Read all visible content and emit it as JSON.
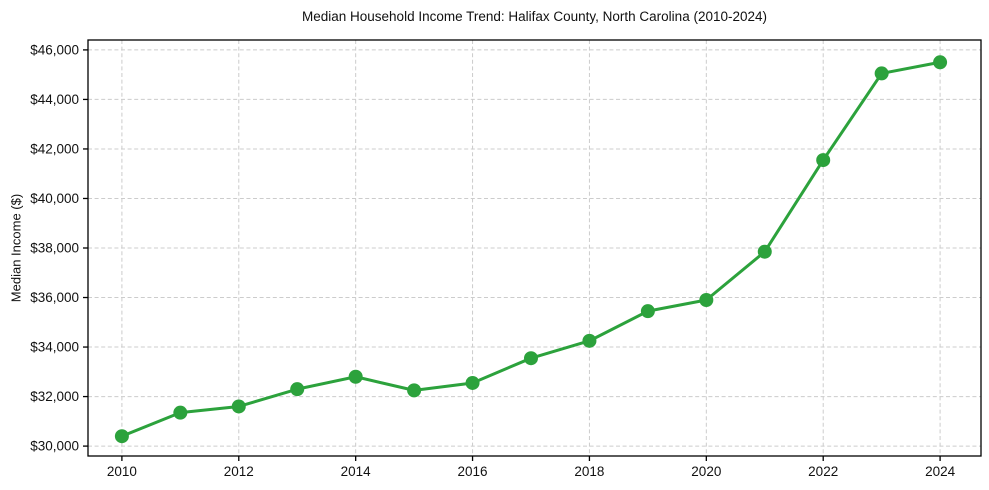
{
  "figure": {
    "background": "#ffffff",
    "text_color": "#111111",
    "spine_color": "#000000",
    "grid_color": "#cccccc"
  },
  "chart_data": {
    "type": "line",
    "title": "Median Household Income Trend: Halifax County, North Carolina (2010-2024)",
    "xlabel": "",
    "ylabel": "Median Income ($)",
    "x": [
      2010,
      2011,
      2012,
      2013,
      2014,
      2015,
      2016,
      2017,
      2018,
      2019,
      2020,
      2021,
      2022,
      2023,
      2024
    ],
    "values": [
      30400,
      31350,
      31600,
      32300,
      32800,
      32250,
      32550,
      33550,
      34250,
      35450,
      35900,
      37850,
      41550,
      45050,
      45500
    ],
    "line_color": "#2ca23c",
    "marker": "circle",
    "marker_size": 7,
    "line_width": 3,
    "x_ticks": [
      2010,
      2012,
      2014,
      2016,
      2018,
      2020,
      2022,
      2024
    ],
    "x_tick_labels": [
      "2010",
      "2012",
      "2014",
      "2016",
      "2018",
      "2020",
      "2022",
      "2024"
    ],
    "y_ticks": [
      30000,
      32000,
      34000,
      36000,
      38000,
      40000,
      42000,
      44000,
      46000
    ],
    "y_tick_labels": [
      "$30,000",
      "$32,000",
      "$34,000",
      "$36,000",
      "$38,000",
      "$40,000",
      "$42,000",
      "$44,000",
      "$46,000"
    ],
    "xlim": [
      2009.42,
      2024.7
    ],
    "ylim": [
      29600,
      46400
    ],
    "grid": true,
    "grid_style": "dashed",
    "legend": "none"
  }
}
